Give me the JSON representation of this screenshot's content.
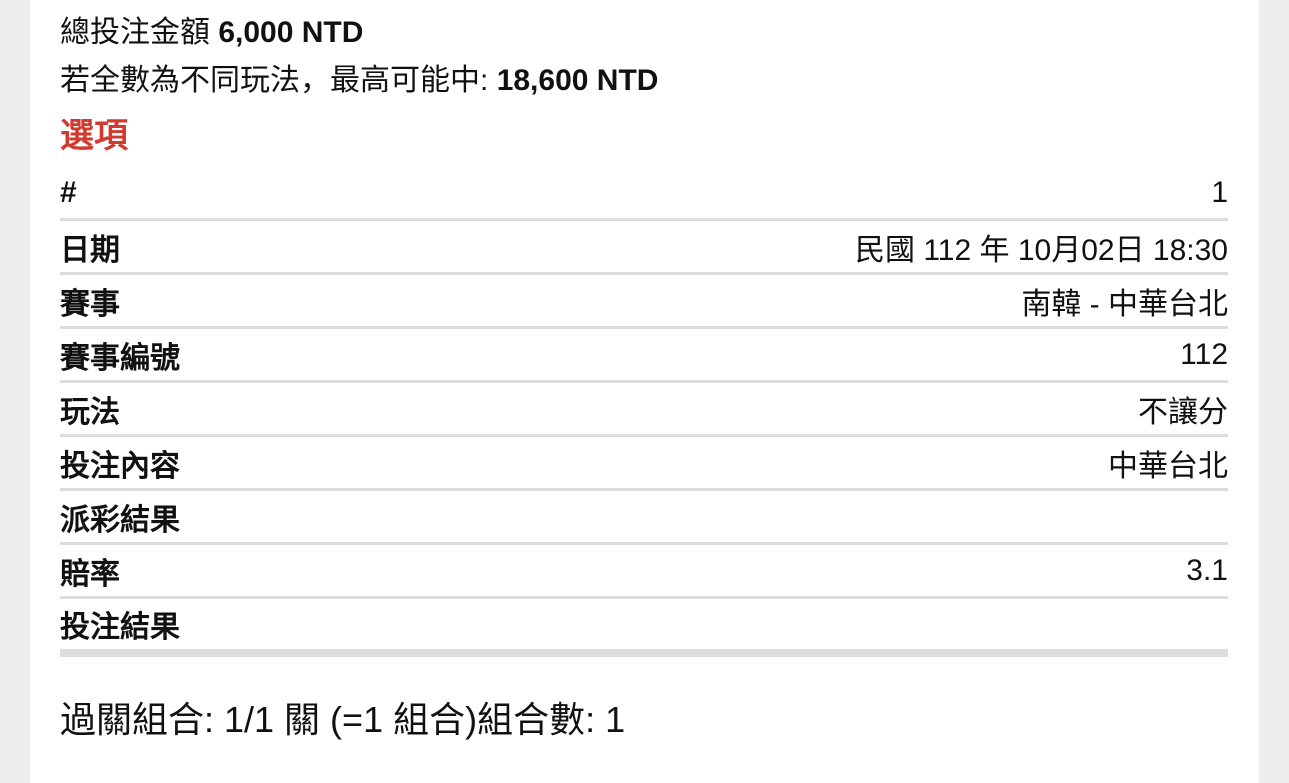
{
  "summary": {
    "total_label": "總投注金額",
    "total_value": "6,000 NTD",
    "max_label": "若全數為不同玩法，最高可能中:",
    "max_value": "18,600 NTD"
  },
  "section_title": "選項",
  "rows": [
    {
      "key": "#",
      "value": "1"
    },
    {
      "key": "日期",
      "value": "民國 112 年 10月02日 18:30"
    },
    {
      "key": "賽事",
      "value": "南韓 - 中華台北"
    },
    {
      "key": "賽事編號",
      "value": "112"
    },
    {
      "key": "玩法",
      "value": "不讓分"
    },
    {
      "key": "投注內容",
      "value": "中華台北"
    },
    {
      "key": "派彩結果",
      "value": ""
    },
    {
      "key": "賠率",
      "value": "3.1"
    },
    {
      "key": "投注結果",
      "value": ""
    }
  ],
  "footer": "過關組合: 1/1 關 (=1 組合)組合數: 1",
  "colors": {
    "accent": "#d03a2f",
    "divider": "#dddddd",
    "background": "#eeeeee"
  }
}
